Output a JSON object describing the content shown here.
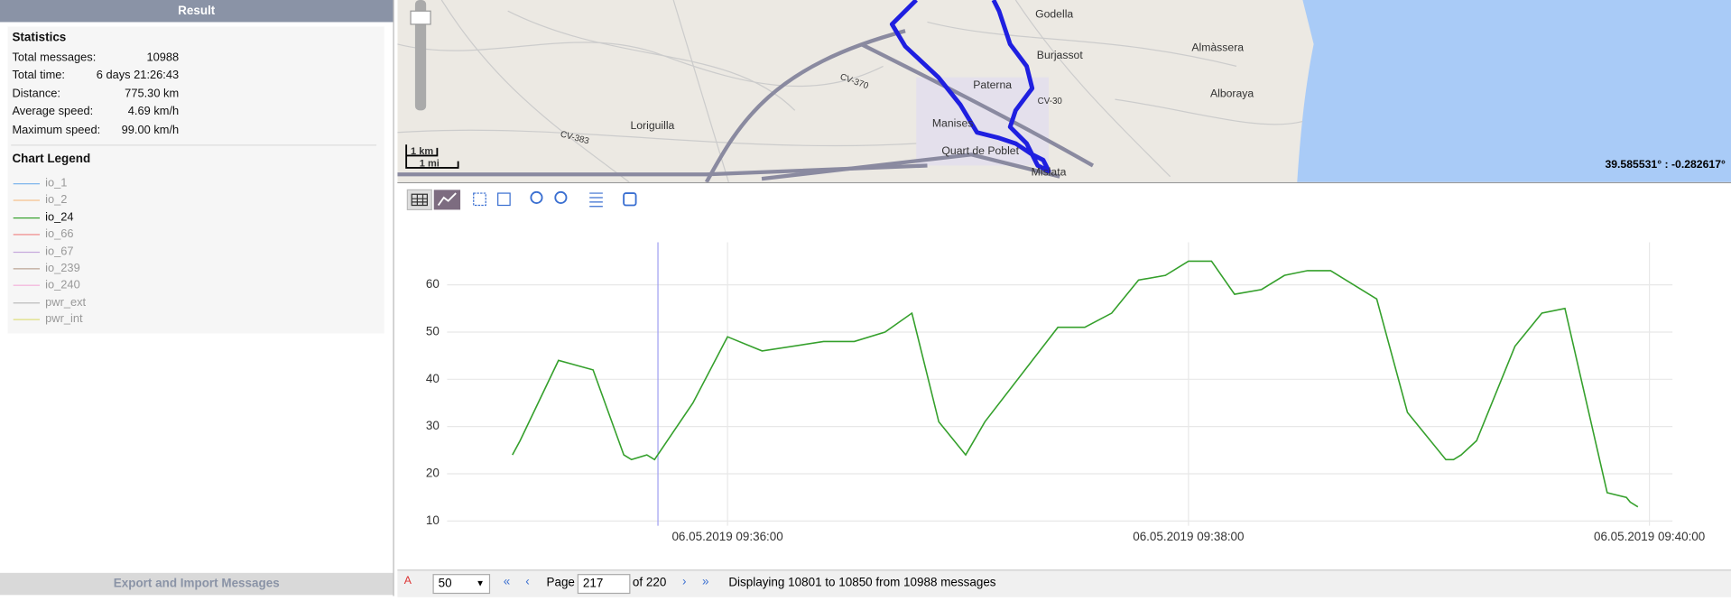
{
  "panel": {
    "title": "Result",
    "statistics_title": "Statistics",
    "statistics": [
      [
        "Total messages:",
        "10988"
      ],
      [
        "Total time:",
        "6 days 21:26:43"
      ],
      [
        "Distance:",
        "775.30 km"
      ],
      [
        "Average speed:",
        "4.69 km/h"
      ],
      [
        "Maximum speed:",
        "99.00 km/h"
      ]
    ],
    "legend_title": "Chart Legend",
    "footer": "Export and Import Messages"
  },
  "map": {
    "labels": [
      "Godella",
      "Burjassot",
      "Almàssera",
      "Paterna",
      "Alboraya",
      "Manises",
      "Quart de Poblet",
      "Mislata",
      "Loriguilla",
      "CV-370",
      "CV-30",
      "CV-383"
    ],
    "scale": [
      "1 km",
      "1 mi"
    ],
    "coordinates": "39.585531° : -0.282617°"
  },
  "chart_data": {
    "type": "line",
    "x": [
      "06.05.2019 09:35:04",
      "06.05.2019 09:35:06",
      "06.05.2019 09:35:16",
      "06.05.2019 09:35:25",
      "06.05.2019 09:35:33",
      "06.05.2019 09:35:35",
      "06.05.2019 09:35:39",
      "06.05.2019 09:35:41",
      "06.05.2019 09:35:51",
      "06.05.2019 09:36:00",
      "06.05.2019 09:36:09",
      "06.05.2019 09:36:25",
      "06.05.2019 09:36:33",
      "06.05.2019 09:36:41",
      "06.05.2019 09:36:48",
      "06.05.2019 09:36:55",
      "06.05.2019 09:37:00",
      "06.05.2019 09:37:02",
      "06.05.2019 09:37:07",
      "06.05.2019 09:37:26",
      "06.05.2019 09:37:33",
      "06.05.2019 09:37:40",
      "06.05.2019 09:37:47",
      "06.05.2019 09:37:54",
      "06.05.2019 09:38:00",
      "06.05.2019 09:38:06",
      "06.05.2019 09:38:12",
      "06.05.2019 09:38:19",
      "06.05.2019 09:38:25",
      "06.05.2019 09:38:31",
      "06.05.2019 09:38:37",
      "06.05.2019 09:38:49",
      "06.05.2019 09:38:57",
      "06.05.2019 09:39:07",
      "06.05.2019 09:39:09",
      "06.05.2019 09:39:11",
      "06.05.2019 09:39:15",
      "06.05.2019 09:39:25",
      "06.05.2019 09:39:32",
      "06.05.2019 09:39:38",
      "06.05.2019 09:39:49",
      "06.05.2019 09:39:54",
      "06.05.2019 09:39:55",
      "06.05.2019 09:39:57"
    ],
    "series": [
      {
        "name": "io_1",
        "color": "#7cb5ec",
        "visible": false
      },
      {
        "name": "io_2",
        "color": "#f5c08c",
        "visible": false
      },
      {
        "name": "io_24",
        "color": "#35a02c",
        "visible": true,
        "values": [
          24,
          27,
          44,
          42,
          24,
          23,
          24,
          23,
          35,
          49,
          46,
          48,
          48,
          50,
          54,
          31,
          26,
          24,
          31,
          51,
          51,
          54,
          61,
          62,
          65,
          65,
          58,
          59,
          62,
          63,
          63,
          57,
          33,
          23,
          23,
          24,
          27,
          47,
          54,
          55,
          16,
          15,
          14,
          13
        ]
      },
      {
        "name": "io_66",
        "color": "#f08a8a",
        "visible": false
      },
      {
        "name": "io_67",
        "color": "#c6a8dc",
        "visible": false
      },
      {
        "name": "io_239",
        "color": "#bba595",
        "visible": false
      },
      {
        "name": "io_240",
        "color": "#f3b3da",
        "visible": false
      },
      {
        "name": "pwr_ext",
        "color": "#bbbbbb",
        "visible": false
      },
      {
        "name": "pwr_int",
        "color": "#dede7c",
        "visible": false
      }
    ],
    "xlim": [
      "06.05.2019 09:34:47",
      "06.05.2019 09:40:06"
    ],
    "xticks": [
      "06.05.2019 09:36:00",
      "06.05.2019 09:38:00",
      "06.05.2019 09:40:00"
    ],
    "ylim": [
      9,
      69
    ],
    "yticks": [
      10,
      20,
      30,
      40,
      50,
      60
    ],
    "grid": true
  },
  "pager": {
    "page_size": "50",
    "page_label": "Page",
    "page": "217",
    "of": "of 220",
    "status": "Displaying 10801 to 10850 from 10988 messages"
  }
}
